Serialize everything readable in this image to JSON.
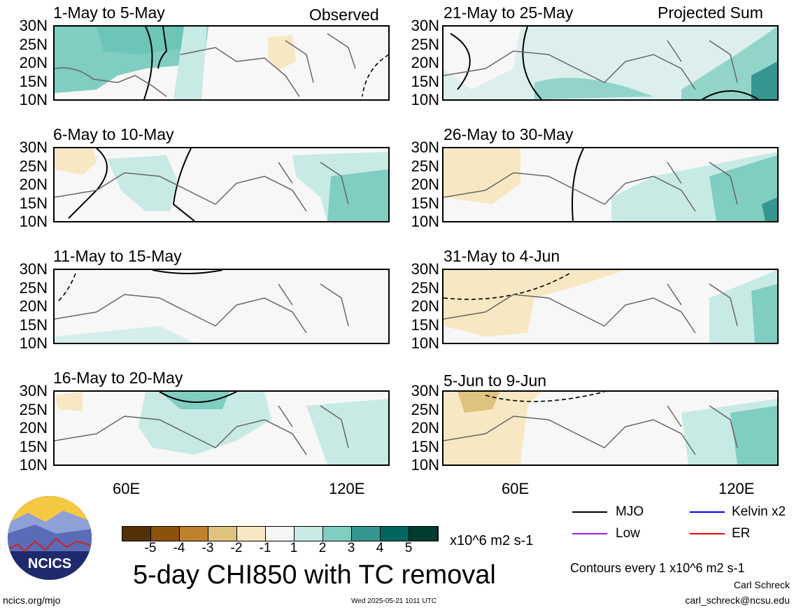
{
  "column_tags": {
    "left": "Observed",
    "right": "Projected Sum"
  },
  "lat_labels": [
    "30N",
    "25N",
    "20N",
    "15N",
    "10N"
  ],
  "lon_labels": [
    "60E",
    "120E"
  ],
  "panels": {
    "left": [
      {
        "title": "1-May to 5-May"
      },
      {
        "title": "6-May to 10-May"
      },
      {
        "title": "11-May to 15-May"
      },
      {
        "title": "16-May to 20-May"
      }
    ],
    "right": [
      {
        "title": "21-May to 25-May"
      },
      {
        "title": "26-May to 30-May"
      },
      {
        "title": "31-May to 4-Jun"
      },
      {
        "title": "5-Jun to 9-Jun"
      }
    ]
  },
  "colorbar": {
    "labels": [
      "-5",
      "-4",
      "-3",
      "-2",
      "-1",
      "1",
      "2",
      "3",
      "4",
      "5"
    ],
    "colors": [
      "#543005",
      "#8c510a",
      "#bf812d",
      "#dfc27d",
      "#f6e8c3",
      "#f5f5f5",
      "#c7eae5",
      "#80cdc1",
      "#35978f",
      "#01665e",
      "#003c30"
    ],
    "units": "x10^6 m2 s-1"
  },
  "title": "5-day CHI850 with TC removal",
  "legend": [
    {
      "label": "MJO",
      "color": "#000000"
    },
    {
      "label": "Kelvin x2",
      "color": "#0000ff"
    },
    {
      "label": "Low",
      "color": "#a020f0"
    },
    {
      "label": "ER",
      "color": "#ff0000"
    }
  ],
  "contour_note": "Contours every 1 x10^6 m2 s-1",
  "author": "Carl Schreck",
  "email": "carl_schreck@ncsu.edu",
  "website": "ncics.org/mjo",
  "timestamp": "Wed 2025-05-21 1011 UTC",
  "logo_text": "NCICS"
}
